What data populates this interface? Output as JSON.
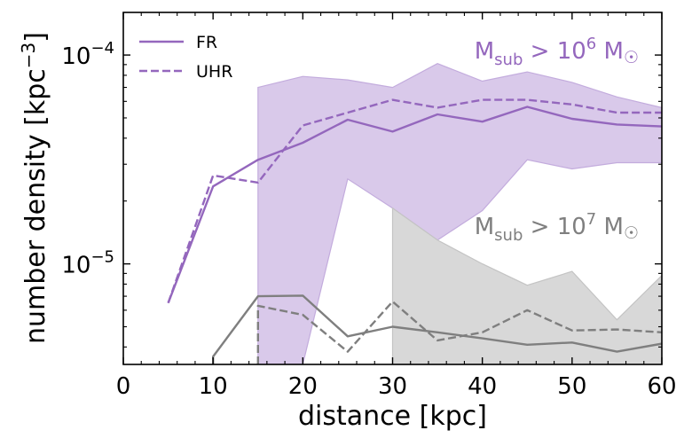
{
  "chart_data": {
    "type": "line",
    "xlabel": "distance [kpc]",
    "ylabel_main": "number density [kpc",
    "ylabel_exp": "−3",
    "ylabel_close": "]",
    "xlim": [
      0,
      60
    ],
    "ylim": [
      3.3e-06,
      0.00016
    ],
    "yscale": "log",
    "x_ticks": [
      0,
      10,
      20,
      30,
      40,
      50,
      60
    ],
    "x_tick_labels": [
      "0",
      "10",
      "20",
      "30",
      "40",
      "50",
      "60"
    ],
    "y_major_ticks": [
      {
        "value": 1e-05,
        "base": "10",
        "exp": "−5"
      },
      {
        "value": 0.0001,
        "base": "10",
        "exp": "−4"
      }
    ],
    "legend": {
      "position": "upper-left",
      "entries": [
        {
          "label": "FR",
          "style": "solid"
        },
        {
          "label": "UHR",
          "style": "dashed"
        }
      ]
    },
    "annotations": [
      {
        "id": "high",
        "main": "M",
        "sub": "sub",
        "text": " > 10",
        "sup": "6",
        "unit": " M",
        "sun": "☉",
        "color": "#9467bd"
      },
      {
        "id": "low",
        "main": "M",
        "sub": "sub",
        "text": " > 10",
        "sup": "7",
        "unit": " M",
        "sun": "☉",
        "color": "#7f7f7f"
      }
    ],
    "colors": {
      "purple": "#9467bd",
      "purple_fill": "#d9c9ea",
      "purple_fill_edge": "#c3acdd",
      "gray": "#7f7f7f",
      "gray_fill": "#d8d8d8",
      "gray_fill_edge": "#c4c4c4"
    },
    "series": [
      {
        "name": "FR  M_sub > 10^6",
        "color": "purple",
        "style": "solid",
        "x": [
          5,
          10,
          15,
          20,
          25,
          30,
          35,
          40,
          45,
          50,
          55,
          60
        ],
        "y": [
          6.5e-06,
          2.35e-05,
          3.15e-05,
          3.8e-05,
          4.9e-05,
          4.3e-05,
          5.2e-05,
          4.8e-05,
          5.65e-05,
          4.95e-05,
          4.65e-05,
          4.55e-05
        ]
      },
      {
        "name": "UHR  M_sub > 10^6",
        "color": "purple",
        "style": "dashed",
        "x": [
          5,
          10,
          15,
          20,
          25,
          30,
          35,
          40,
          45,
          50,
          55,
          60
        ],
        "y": [
          6.5e-06,
          2.65e-05,
          2.45e-05,
          4.6e-05,
          5.3e-05,
          6.1e-05,
          5.6e-05,
          6.1e-05,
          6.1e-05,
          5.8e-05,
          5.3e-05,
          5.3e-05
        ]
      },
      {
        "name": "FR  M_sub > 10^7",
        "color": "gray",
        "style": "solid",
        "x": [
          10,
          10,
          15,
          20,
          25,
          30,
          35,
          40,
          45,
          50,
          55,
          60
        ],
        "y": [
          3.3e-06,
          3.6e-06,
          7e-06,
          7.05e-06,
          4.5e-06,
          5e-06,
          4.7e-06,
          4.4e-06,
          4.1e-06,
          4.2e-06,
          3.8e-06,
          4.15e-06
        ]
      },
      {
        "name": "UHR  M_sub > 10^7",
        "color": "gray",
        "style": "dashed",
        "x": [
          15,
          15,
          20,
          25,
          30,
          35,
          40,
          45,
          50,
          55,
          60
        ],
        "y": [
          3.3e-06,
          6.3e-06,
          5.7e-06,
          3.8e-06,
          6.6e-06,
          4.3e-06,
          4.7e-06,
          6e-06,
          4.8e-06,
          4.85e-06,
          4.7e-06
        ]
      }
    ],
    "bands": [
      {
        "name": "M_sub > 10^6 scatter",
        "fill": "purple_fill",
        "edge": "purple_fill_edge",
        "x": [
          15,
          20,
          25,
          30,
          35,
          40,
          45,
          50,
          55,
          60
        ],
        "upper": [
          7e-05,
          7.9e-05,
          7.6e-05,
          7e-05,
          9.1e-05,
          7.5e-05,
          8.3e-05,
          7.4e-05,
          6.3e-05,
          5.6e-05
        ],
        "lower": [
          3.3e-06,
          3.3e-06,
          2.55e-05,
          1.85e-05,
          1.3e-05,
          1.8e-05,
          3.15e-05,
          2.85e-05,
          3.05e-05,
          3.05e-05
        ]
      },
      {
        "name": "M_sub > 10^7 scatter",
        "fill": "gray_fill",
        "edge": "gray_fill_edge",
        "x": [
          30,
          35,
          40,
          45,
          50,
          55,
          60
        ],
        "upper": [
          1.85e-05,
          1.3e-05,
          1e-05,
          7.9e-06,
          9.2e-06,
          5.4e-06,
          8.8e-06
        ],
        "lower": [
          3.3e-06,
          3.3e-06,
          3.3e-06,
          3.3e-06,
          3.3e-06,
          3.3e-06,
          3.3e-06
        ]
      }
    ]
  }
}
